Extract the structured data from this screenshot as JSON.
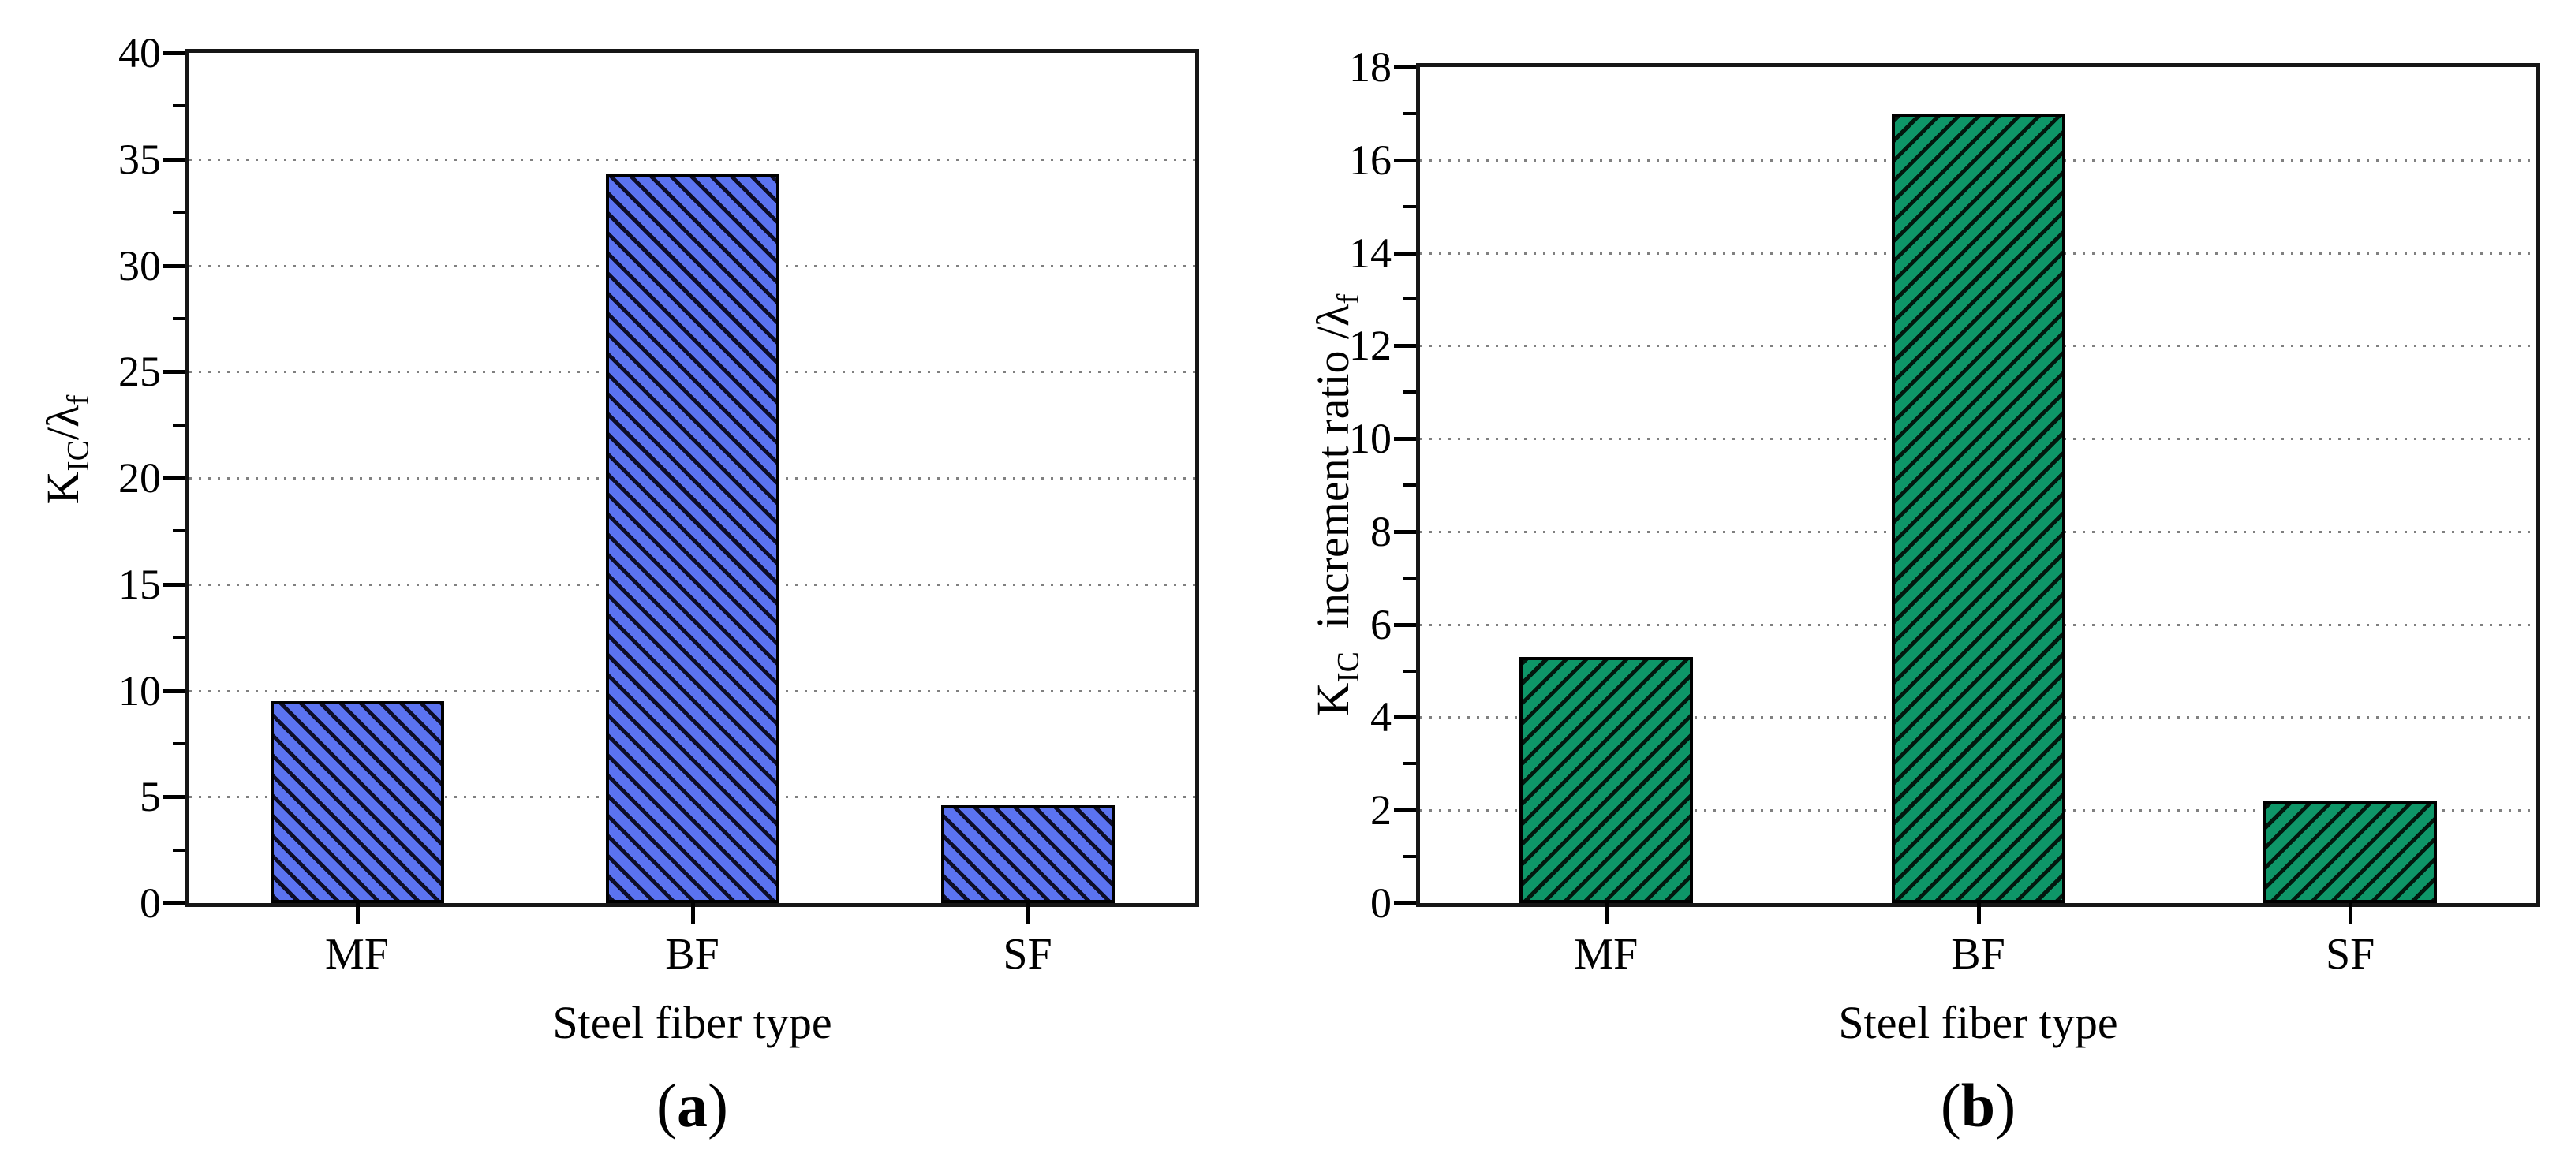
{
  "figure": {
    "background": "#ffffff",
    "description_texts": {
      "x_axis_label": "Steel fiber type",
      "panel_a_label": "(a)",
      "panel_b_label": "(b)"
    }
  },
  "chart_data": [
    {
      "type": "bar",
      "panel_label": "(a)",
      "title": "",
      "xlabel": "Steel fiber type",
      "ylabel": "K_IC/λ_f",
      "ylabel_rich": [
        {
          "text": "K",
          "sub": false
        },
        {
          "text": "IC",
          "sub": true
        },
        {
          "text": "/λ",
          "sub": false
        },
        {
          "text": "f",
          "sub": true
        }
      ],
      "categories": [
        "MF",
        "BF",
        "SF"
      ],
      "values": [
        9.5,
        34.3,
        4.6
      ],
      "ylim": [
        0,
        40
      ],
      "ytick_step": 5,
      "yminor_step": 2.5,
      "ytick_labels": [
        "0",
        "5",
        "10",
        "15",
        "20",
        "25",
        "30",
        "35",
        "40"
      ],
      "grid": "horizontal dotted at major ticks",
      "legend": "none",
      "bar_color": "#5b73f0",
      "hatch": "\\",
      "hatch_color": "#0d0d28"
    },
    {
      "type": "bar",
      "panel_label": "(b)",
      "title": "",
      "xlabel": "Steel fiber type",
      "ylabel": "K_IC  increment ratio /λ_f",
      "ylabel_rich": [
        {
          "text": "K",
          "sub": false
        },
        {
          "text": "IC",
          "sub": true
        },
        {
          "text": "  increment ratio /λ",
          "sub": false
        },
        {
          "text": "f",
          "sub": true
        }
      ],
      "categories": [
        "MF",
        "BF",
        "SF"
      ],
      "values": [
        5.3,
        17.0,
        2.2
      ],
      "ylim": [
        0,
        18
      ],
      "ytick_step": 2,
      "yminor_step": 1,
      "ytick_labels": [
        "0",
        "2",
        "4",
        "6",
        "8",
        "10",
        "12",
        "14",
        "16",
        "18"
      ],
      "grid": "horizontal dotted at major ticks",
      "legend": "none",
      "bar_color": "#0e9668",
      "hatch": "/",
      "hatch_color": "#02180e"
    }
  ]
}
